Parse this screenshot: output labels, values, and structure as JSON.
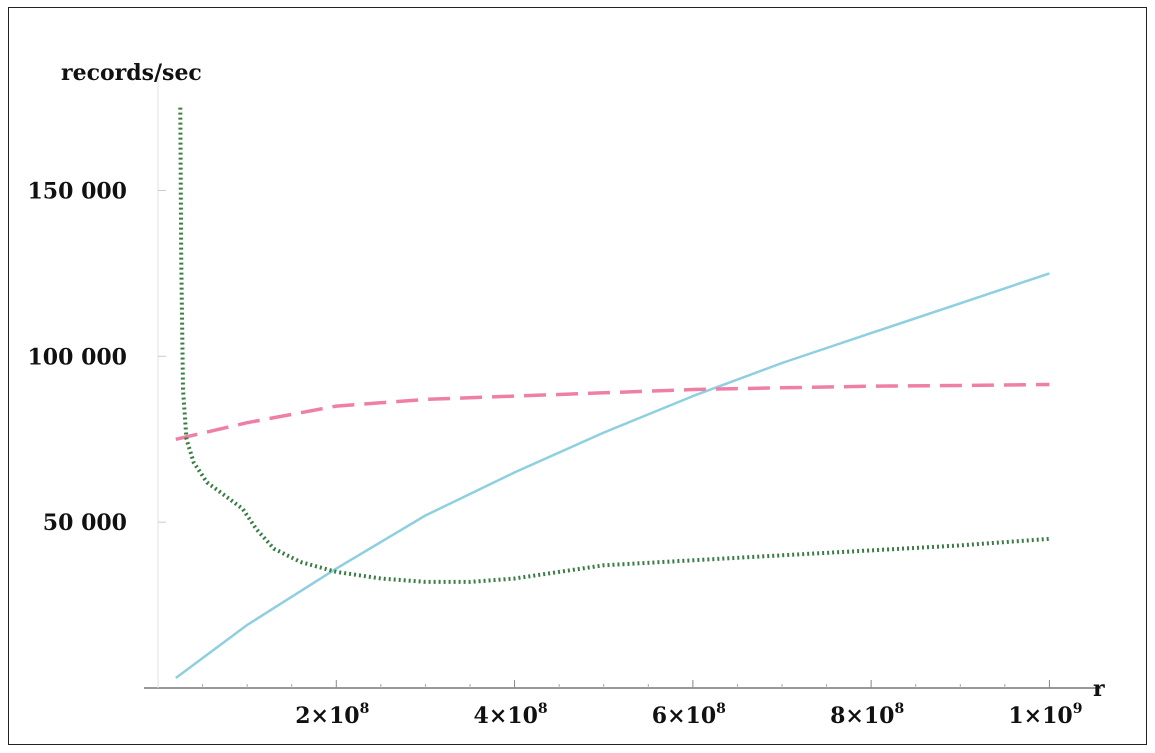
{
  "chart_data": {
    "type": "line",
    "ylabel": "records/sec",
    "xlabel": "r",
    "xlim": [
      0,
      1050000000
    ],
    "ylim": [
      0,
      180000
    ],
    "x_ticks": [
      200000000,
      400000000,
      600000000,
      800000000,
      1000000000
    ],
    "x_tick_labels": [
      "2×10",
      "4×10",
      "6×10",
      "8×10",
      "1×10"
    ],
    "x_tick_exponents": [
      "8",
      "8",
      "8",
      "8",
      "9"
    ],
    "y_ticks": [
      50000,
      100000,
      150000
    ],
    "y_tick_labels": [
      "50 000",
      "100 000",
      "150 000"
    ],
    "grid": false,
    "legend": "none",
    "series": [
      {
        "color": "#8ecfe0",
        "style": "solid",
        "x": [
          20000000,
          100000000,
          200000000,
          300000000,
          400000000,
          500000000,
          600000000,
          700000000,
          800000000,
          900000000,
          1000000000
        ],
        "y": [
          3000,
          19000,
          36000,
          52000,
          65000,
          77000,
          88000,
          98000,
          107000,
          116000,
          125000
        ]
      },
      {
        "color": "#f07fa8",
        "style": "dashed",
        "x": [
          20000000,
          100000000,
          200000000,
          300000000,
          400000000,
          500000000,
          600000000,
          700000000,
          800000000,
          900000000,
          1000000000
        ],
        "y": [
          75000,
          80000,
          85000,
          87000,
          88000,
          89000,
          90000,
          90500,
          91000,
          91200,
          91500
        ]
      },
      {
        "color": "#3a7d44",
        "style": "dotted",
        "x": [
          25000000,
          26000000,
          28000000,
          32000000,
          40000000,
          55000000,
          75000000,
          95000000,
          110000000,
          130000000,
          160000000,
          200000000,
          250000000,
          300000000,
          350000000,
          400000000,
          450000000,
          500000000,
          600000000,
          700000000,
          800000000,
          900000000,
          1000000000
        ],
        "y": [
          175000,
          130000,
          90000,
          75000,
          68000,
          62000,
          58000,
          54000,
          48000,
          42000,
          38000,
          35000,
          33000,
          32000,
          32000,
          33000,
          35000,
          37000,
          38500,
          40000,
          41500,
          43000,
          45000
        ]
      }
    ]
  }
}
